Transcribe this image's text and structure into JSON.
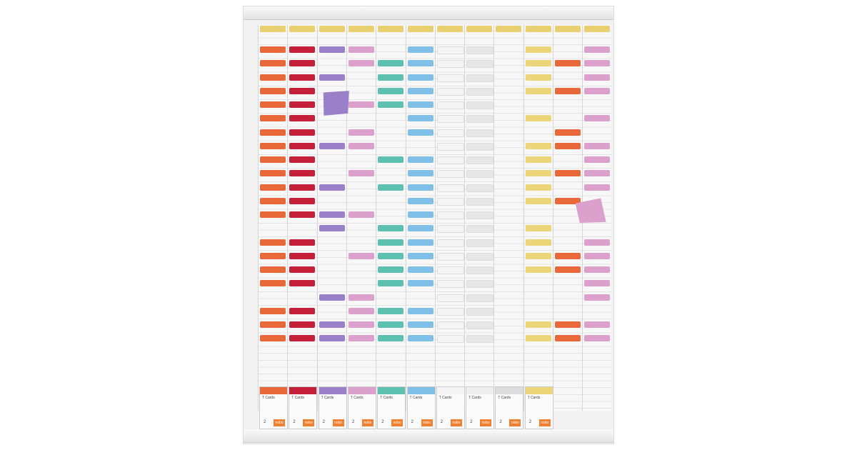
{
  "board": {
    "header_color": "#e8d070",
    "columns": [
      {
        "color": "#e8683a",
        "rows": "1111111111111011110111"
      },
      {
        "color": "#c4203a",
        "rows": "1111111111111011110111"
      },
      {
        "color": "#9a80c8",
        "rows": "1010000100101100001011"
      },
      {
        "color": "#dba0cc",
        "rows": "1100101101001001001111"
      },
      {
        "color": "#5ec0b0",
        "rows": "0111100010100111110111"
      },
      {
        "color": "#80c0e8",
        "rows": "1111111011111111110111"
      },
      {
        "color": "#f4f4f4",
        "rows": "1111111111111111111111"
      },
      {
        "color": "#e6e6e6",
        "rows": "1111111111111111111111"
      },
      {
        "color": "#f0f0f0",
        "rows": "0000000000000000000000"
      },
      {
        "color": "#ecd478",
        "rows": "1111010111110111100011"
      },
      {
        "color": "#e8683a",
        "rows": "0101001101010001100011"
      },
      {
        "color": "#dba0cc",
        "rows": "1111010111100011111011"
      }
    ],
    "packs": [
      {
        "color": "#e8683a",
        "label": "T Cards",
        "count": "2",
        "brand": "nobo"
      },
      {
        "color": "#c4203a",
        "label": "T Cards",
        "count": "2",
        "brand": "nobo"
      },
      {
        "color": "#9a80c8",
        "label": "T Cards",
        "count": "2",
        "brand": "nobo"
      },
      {
        "color": "#dba0cc",
        "label": "T Cards",
        "count": "2",
        "brand": "nobo"
      },
      {
        "color": "#5ec0b0",
        "label": "T Cards",
        "count": "2",
        "brand": "nobo"
      },
      {
        "color": "#80c0e8",
        "label": "T Cards",
        "count": "2",
        "brand": "nobo"
      },
      {
        "color": "#f4f4f4",
        "label": "T Cards",
        "count": "2",
        "brand": "nobo"
      },
      {
        "color": "#eeeeee",
        "label": "T Cards",
        "count": "2",
        "brand": "nobo"
      },
      {
        "color": "#dcdcdc",
        "label": "T Cards",
        "count": "2",
        "brand": "nobo"
      },
      {
        "color": "#ecd478",
        "label": "T Cards",
        "count": "2",
        "brand": "nobo"
      }
    ]
  }
}
